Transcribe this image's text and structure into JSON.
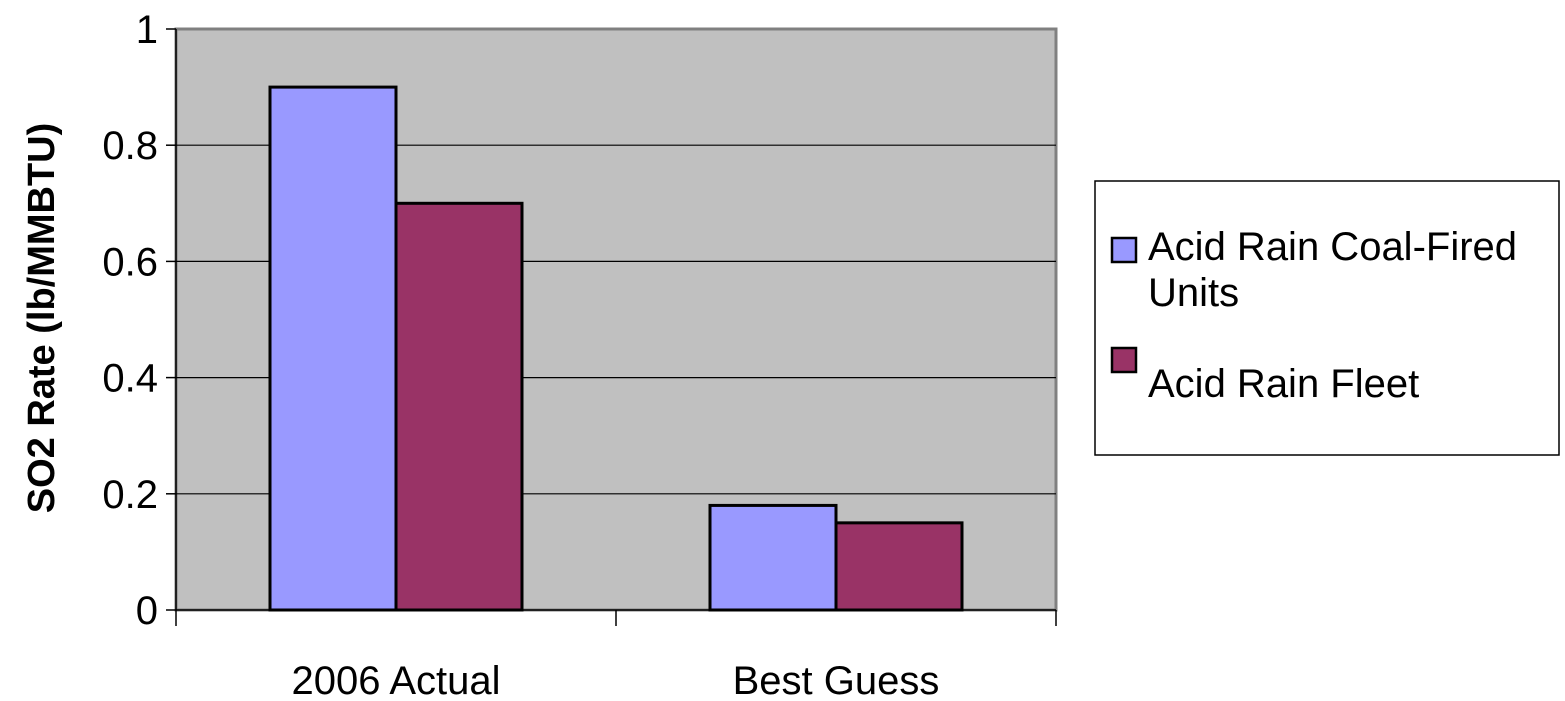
{
  "chart_data": {
    "type": "bar",
    "title": "",
    "xlabel": "",
    "ylabel": "SO2 Rate (lb/MMBTU)",
    "ylim": [
      0,
      1
    ],
    "yticks": [
      0,
      0.2,
      0.4,
      0.6,
      0.8,
      1
    ],
    "ytick_labels": [
      "0",
      "0.2",
      "0.4",
      "0.6",
      "0.8",
      "1"
    ],
    "categories": [
      "2006 Actual",
      "Best Guess"
    ],
    "series": [
      {
        "name": "Acid Rain Coal-Fired Units",
        "values": [
          0.9,
          0.18
        ],
        "color": "#9999ff"
      },
      {
        "name": "Acid Rain Fleet",
        "values": [
          0.7,
          0.15
        ],
        "color": "#993366"
      }
    ],
    "plot_background": "#c0c0c0",
    "grid": true,
    "legend_position": "right"
  }
}
